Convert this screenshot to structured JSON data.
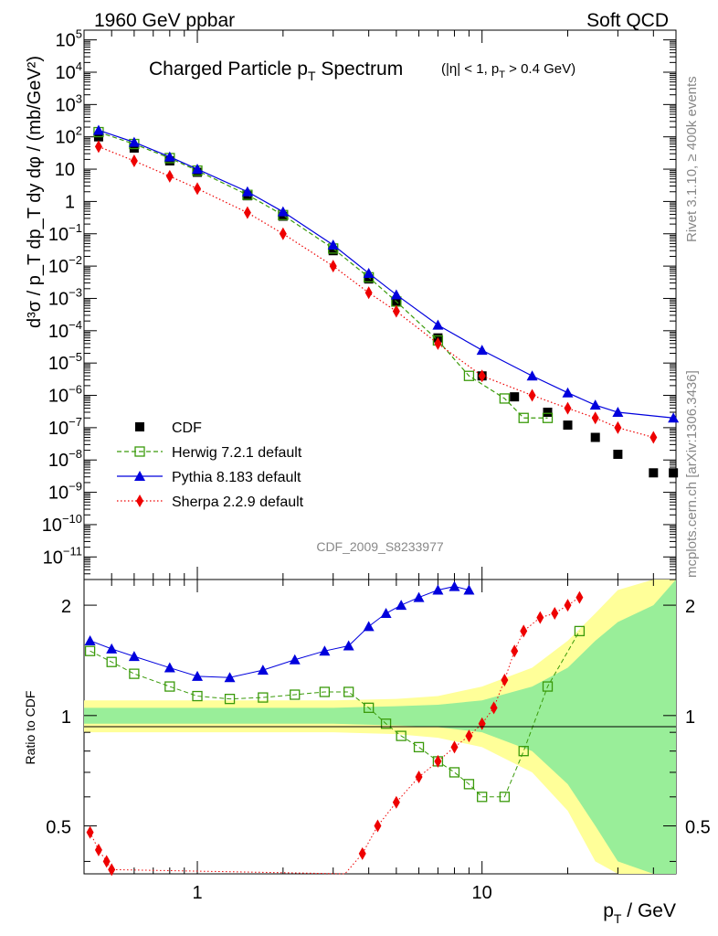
{
  "header": {
    "left": "1960 GeV ppbar",
    "right": "Soft QCD"
  },
  "title": {
    "main": "Charged Particle p",
    "main_sub": "T",
    "main_tail": " Spectrum",
    "cuts": "(|η| < 1, p",
    "cuts_sub": "T",
    "cuts_tail": " > 0.4 GeV)"
  },
  "side_labels": {
    "rivet": "Rivet 3.1.10, ≥ 400k events",
    "mcplots": "mcplots.cern.ch [arXiv:1306.3436]"
  },
  "analysis_id": "CDF_2009_S8233977",
  "axes": {
    "ylabel_top": "d³σ / p_T dp_T dy dφ / (mb/GeV²)",
    "ylabel_ratio": "Ratio to CDF",
    "xlabel": "p",
    "xlabel_sub": "T",
    "xlabel_tail": " / GeV"
  },
  "x_ticks": [
    {
      "value": 1,
      "label": "1"
    },
    {
      "value": 10,
      "label": "10"
    }
  ],
  "y_ticks_top": [
    {
      "exp": -11,
      "label": "10",
      "sup": "−11"
    },
    {
      "exp": -10,
      "label": "10",
      "sup": "−10"
    },
    {
      "exp": -9,
      "label": "10",
      "sup": "−9"
    },
    {
      "exp": -8,
      "label": "10",
      "sup": "−8"
    },
    {
      "exp": -7,
      "label": "10",
      "sup": "−7"
    },
    {
      "exp": -6,
      "label": "10",
      "sup": "−6"
    },
    {
      "exp": -5,
      "label": "10",
      "sup": "−5"
    },
    {
      "exp": -4,
      "label": "10",
      "sup": "−4"
    },
    {
      "exp": -3,
      "label": "10",
      "sup": "−3"
    },
    {
      "exp": -2,
      "label": "10",
      "sup": "−2"
    },
    {
      "exp": -1,
      "label": "10",
      "sup": "−1"
    },
    {
      "exp": 0,
      "label": "1",
      "sup": ""
    },
    {
      "exp": 1,
      "label": "10",
      "sup": ""
    },
    {
      "exp": 2,
      "label": "10",
      "sup": "2"
    },
    {
      "exp": 3,
      "label": "10",
      "sup": "3"
    },
    {
      "exp": 4,
      "label": "10",
      "sup": "4"
    },
    {
      "exp": 5,
      "label": "10",
      "sup": "5"
    }
  ],
  "y_ticks_ratio": [
    {
      "value": 0.5,
      "label": "0.5"
    },
    {
      "value": 1,
      "label": "1"
    },
    {
      "value": 2,
      "label": "2"
    }
  ],
  "legend": [
    {
      "name": "CDF",
      "color": "#000000",
      "marker": "square"
    },
    {
      "name": "Herwig 7.2.1 default",
      "color": "#3a9a0a",
      "marker": "open-square"
    },
    {
      "name": "Pythia 8.183 default",
      "color": "#0000dd",
      "marker": "triangle"
    },
    {
      "name": "Sherpa 2.2.9 default",
      "color": "#ee0000",
      "marker": "diamond"
    }
  ],
  "chart_data": {
    "type": "scatter",
    "title": "Charged Particle pT Spectrum (|η| < 1, pT > 0.4 GeV)",
    "xlabel": "pT / GeV",
    "ylabel": "d³σ / pT dpT dy dφ / (mb/GeV²)",
    "xscale": "log",
    "yscale": "log",
    "xlim": [
      0.4,
      48
    ],
    "ylim": [
      2e-12,
      200000.0
    ],
    "ratio_ylim": [
      0.37,
      2.35
    ],
    "series": [
      {
        "name": "CDF",
        "x": [
          0.45,
          0.6,
          0.8,
          1.0,
          1.5,
          2.0,
          3.0,
          4.0,
          5.0,
          7.0,
          10.0,
          13.0,
          17.0,
          20.0,
          25.0,
          30.0,
          40.0,
          47.0
        ],
        "y": [
          100,
          45,
          18,
          8,
          1.5,
          0.35,
          0.03,
          0.004,
          0.0008,
          6e-05,
          4e-06,
          9e-07,
          3e-07,
          1.2e-07,
          5e-08,
          1.5e-08,
          4e-09,
          4e-09
        ]
      },
      {
        "name": "Herwig 7.2.1 default",
        "x": [
          0.45,
          0.6,
          0.8,
          1.0,
          1.5,
          2.0,
          3.0,
          4.0,
          5.0,
          7.0,
          9.0,
          12.0,
          14.0,
          17.0
        ],
        "y": [
          140,
          60,
          22,
          9,
          1.6,
          0.38,
          0.035,
          0.0045,
          0.0008,
          5e-05,
          4e-06,
          8e-07,
          2e-07,
          2e-07
        ]
      },
      {
        "name": "Pythia 8.183 default",
        "x": [
          0.45,
          0.6,
          0.8,
          1.0,
          1.5,
          2.0,
          3.0,
          4.0,
          5.0,
          7.0,
          10.0,
          15.0,
          20.0,
          25.0,
          30.0,
          47.0
        ],
        "y": [
          160,
          68,
          24,
          10,
          2.0,
          0.48,
          0.045,
          0.006,
          0.0013,
          0.00015,
          2.5e-05,
          4e-06,
          1.2e-06,
          5e-07,
          3e-07,
          2e-07
        ]
      },
      {
        "name": "Sherpa 2.2.9 default",
        "x": [
          0.45,
          0.6,
          0.8,
          1.0,
          1.5,
          2.0,
          3.0,
          4.0,
          5.0,
          7.0,
          10.0,
          15.0,
          20.0,
          25.0,
          30.0,
          40.0
        ],
        "y": [
          50,
          18,
          6,
          2.5,
          0.45,
          0.1,
          0.01,
          0.0015,
          0.0004,
          4e-05,
          4e-06,
          1e-06,
          4e-07,
          2e-07,
          1e-07,
          5e-08
        ]
      }
    ],
    "ratio_series": [
      {
        "name": "Herwig 7.2.1 default",
        "x": [
          0.42,
          0.5,
          0.6,
          0.8,
          1.0,
          1.3,
          1.7,
          2.2,
          2.8,
          3.4,
          4.0,
          4.6,
          5.2,
          6.0,
          7.0,
          8.0,
          9.0,
          10.0,
          12.0,
          14.0,
          17.0,
          22.0
        ],
        "y": [
          1.5,
          1.4,
          1.3,
          1.2,
          1.13,
          1.11,
          1.12,
          1.14,
          1.16,
          1.16,
          1.05,
          0.95,
          0.88,
          0.82,
          0.75,
          0.7,
          0.65,
          0.6,
          0.6,
          0.8,
          1.2,
          1.7
        ]
      },
      {
        "name": "Pythia 8.183 default",
        "x": [
          0.42,
          0.5,
          0.6,
          0.8,
          1.0,
          1.3,
          1.7,
          2.2,
          2.8,
          3.4,
          4.0,
          4.6,
          5.2,
          6.0,
          7.0,
          8.0,
          9.0
        ],
        "y": [
          1.6,
          1.52,
          1.45,
          1.35,
          1.28,
          1.27,
          1.33,
          1.42,
          1.5,
          1.55,
          1.75,
          1.9,
          2.0,
          2.1,
          2.2,
          2.25,
          2.2
        ]
      },
      {
        "name": "Sherpa 2.2.9 default",
        "x": [
          0.42,
          0.45,
          0.48,
          0.5,
          3.3,
          3.8,
          4.3,
          5.0,
          6.0,
          7.0,
          8.0,
          9.0,
          10.0,
          11.0,
          12.0,
          13.0,
          14.0,
          16.0,
          18.0,
          20.0,
          22.0
        ],
        "y": [
          0.48,
          0.43,
          0.4,
          0.38,
          0.37,
          0.42,
          0.5,
          0.58,
          0.68,
          0.75,
          0.82,
          0.88,
          0.95,
          1.05,
          1.25,
          1.5,
          1.7,
          1.85,
          1.9,
          2.0,
          2.1
        ]
      }
    ],
    "uncertainty_band": {
      "x": [
        0.4,
        1,
        3,
        5,
        7,
        10,
        15,
        20,
        25,
        30,
        40,
        48
      ],
      "inner_lo": [
        0.95,
        0.95,
        0.95,
        0.94,
        0.93,
        0.9,
        0.8,
        0.65,
        0.5,
        0.4,
        0.37,
        0.37
      ],
      "inner_hi": [
        1.05,
        1.05,
        1.05,
        1.06,
        1.07,
        1.1,
        1.2,
        1.35,
        1.6,
        1.8,
        2.0,
        2.35
      ],
      "outer_lo": [
        0.9,
        0.9,
        0.9,
        0.89,
        0.87,
        0.82,
        0.7,
        0.55,
        0.4,
        0.37,
        0.37,
        0.37
      ],
      "outer_hi": [
        1.1,
        1.1,
        1.1,
        1.11,
        1.13,
        1.2,
        1.35,
        1.6,
        1.9,
        2.2,
        2.35,
        2.35
      ]
    }
  }
}
